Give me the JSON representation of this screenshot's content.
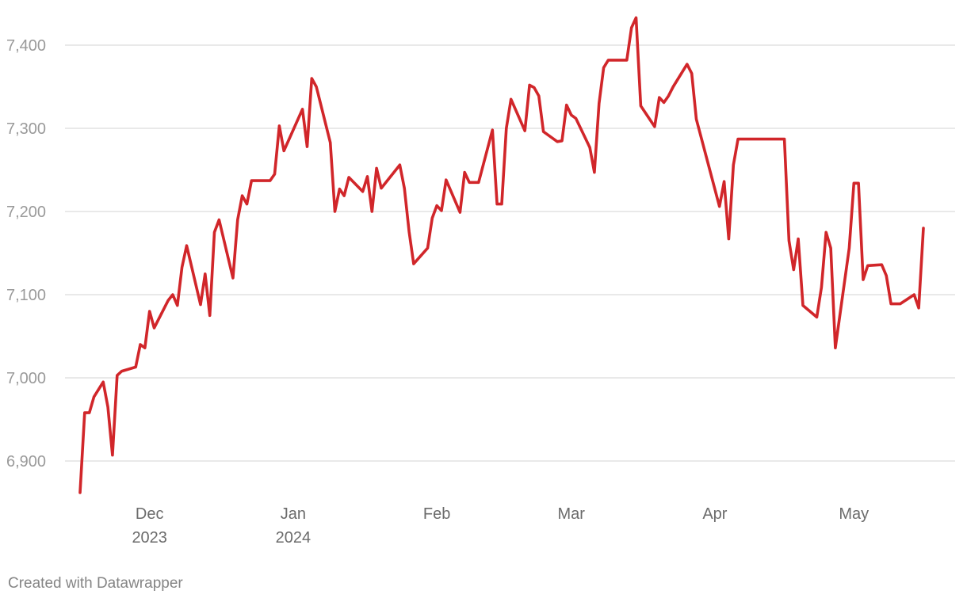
{
  "footer": {
    "credit": "Created with Datawrapper"
  },
  "colors": {
    "line": "#d1262a",
    "grid": "#dcdcdc",
    "ytick": "#9a9a9a",
    "xtick": "#6b6b6b"
  },
  "chart_data": {
    "type": "line",
    "title": "",
    "xlabel": "",
    "ylabel": "",
    "grid": true,
    "legend": "none",
    "ylim": [
      6850,
      7440
    ],
    "xlim": [
      "2023-11-14",
      "2024-05-21"
    ],
    "yticks": [
      6900,
      7000,
      7100,
      7200,
      7300,
      7400
    ],
    "ytick_labels": [
      "6,900",
      "7,000",
      "7,100",
      "7,200",
      "7,300",
      "7,400"
    ],
    "xticks": [
      {
        "date": "2023-12-01",
        "label": "Dec",
        "sublabel": "2023"
      },
      {
        "date": "2024-01-01",
        "label": "Jan",
        "sublabel": "2024"
      },
      {
        "date": "2024-02-01",
        "label": "Feb",
        "sublabel": ""
      },
      {
        "date": "2024-03-01",
        "label": "Mar",
        "sublabel": ""
      },
      {
        "date": "2024-04-01",
        "label": "Apr",
        "sublabel": ""
      },
      {
        "date": "2024-05-01",
        "label": "May",
        "sublabel": ""
      }
    ],
    "series": [
      {
        "points": [
          [
            "2023-11-16",
            6862
          ],
          [
            "2023-11-17",
            6958
          ],
          [
            "2023-11-18",
            6958
          ],
          [
            "2023-11-19",
            6977
          ],
          [
            "2023-11-21",
            6995
          ],
          [
            "2023-11-22",
            6965
          ],
          [
            "2023-11-23",
            6907
          ],
          [
            "2023-11-24",
            7003
          ],
          [
            "2023-11-25",
            7008
          ],
          [
            "2023-11-28",
            7013
          ],
          [
            "2023-11-29",
            7040
          ],
          [
            "2023-11-30",
            7036
          ],
          [
            "2023-12-01",
            7080
          ],
          [
            "2023-12-02",
            7060
          ],
          [
            "2023-12-05",
            7093
          ],
          [
            "2023-12-06",
            7100
          ],
          [
            "2023-12-07",
            7087
          ],
          [
            "2023-12-08",
            7133
          ],
          [
            "2023-12-09",
            7159
          ],
          [
            "2023-12-12",
            7088
          ],
          [
            "2023-12-13",
            7125
          ],
          [
            "2023-12-14",
            7075
          ],
          [
            "2023-12-15",
            7175
          ],
          [
            "2023-12-16",
            7190
          ],
          [
            "2023-12-19",
            7120
          ],
          [
            "2023-12-20",
            7190
          ],
          [
            "2023-12-21",
            7219
          ],
          [
            "2023-12-22",
            7209
          ],
          [
            "2023-12-23",
            7237
          ],
          [
            "2023-12-27",
            7237
          ],
          [
            "2023-12-28",
            7245
          ],
          [
            "2023-12-29",
            7303
          ],
          [
            "2023-12-30",
            7273
          ],
          [
            "2024-01-03",
            7323
          ],
          [
            "2024-01-04",
            7278
          ],
          [
            "2024-01-05",
            7360
          ],
          [
            "2024-01-06",
            7350
          ],
          [
            "2024-01-09",
            7283
          ],
          [
            "2024-01-10",
            7200
          ],
          [
            "2024-01-11",
            7227
          ],
          [
            "2024-01-12",
            7219
          ],
          [
            "2024-01-13",
            7241
          ],
          [
            "2024-01-16",
            7224
          ],
          [
            "2024-01-17",
            7242
          ],
          [
            "2024-01-18",
            7200
          ],
          [
            "2024-01-19",
            7252
          ],
          [
            "2024-01-20",
            7228
          ],
          [
            "2024-01-24",
            7256
          ],
          [
            "2024-01-25",
            7228
          ],
          [
            "2024-01-26",
            7176
          ],
          [
            "2024-01-27",
            7137
          ],
          [
            "2024-01-30",
            7156
          ],
          [
            "2024-01-31",
            7192
          ],
          [
            "2024-02-01",
            7207
          ],
          [
            "2024-02-02",
            7201
          ],
          [
            "2024-02-03",
            7238
          ],
          [
            "2024-02-06",
            7199
          ],
          [
            "2024-02-07",
            7247
          ],
          [
            "2024-02-08",
            7235
          ],
          [
            "2024-02-10",
            7235
          ],
          [
            "2024-02-13",
            7298
          ],
          [
            "2024-02-14",
            7209
          ],
          [
            "2024-02-15",
            7209
          ],
          [
            "2024-02-16",
            7300
          ],
          [
            "2024-02-17",
            7335
          ],
          [
            "2024-02-20",
            7297
          ],
          [
            "2024-02-21",
            7352
          ],
          [
            "2024-02-22",
            7349
          ],
          [
            "2024-02-23",
            7339
          ],
          [
            "2024-02-24",
            7296
          ],
          [
            "2024-02-27",
            7284
          ],
          [
            "2024-02-28",
            7285
          ],
          [
            "2024-02-29",
            7328
          ],
          [
            "2024-03-01",
            7316
          ],
          [
            "2024-03-02",
            7312
          ],
          [
            "2024-03-05",
            7277
          ],
          [
            "2024-03-06",
            7247
          ],
          [
            "2024-03-07",
            7330
          ],
          [
            "2024-03-08",
            7373
          ],
          [
            "2024-03-09",
            7382
          ],
          [
            "2024-03-13",
            7382
          ],
          [
            "2024-03-14",
            7421
          ],
          [
            "2024-03-15",
            7433
          ],
          [
            "2024-03-16",
            7327
          ],
          [
            "2024-03-19",
            7302
          ],
          [
            "2024-03-20",
            7337
          ],
          [
            "2024-03-21",
            7331
          ],
          [
            "2024-03-22",
            7339
          ],
          [
            "2024-03-23",
            7350
          ],
          [
            "2024-03-26",
            7377
          ],
          [
            "2024-03-27",
            7366
          ],
          [
            "2024-03-28",
            7311
          ],
          [
            "2024-04-02",
            7206
          ],
          [
            "2024-04-03",
            7236
          ],
          [
            "2024-04-04",
            7167
          ],
          [
            "2024-04-05",
            7256
          ],
          [
            "2024-04-06",
            7287
          ],
          [
            "2024-04-16",
            7287
          ],
          [
            "2024-04-17",
            7165
          ],
          [
            "2024-04-18",
            7130
          ],
          [
            "2024-04-19",
            7167
          ],
          [
            "2024-04-20",
            7087
          ],
          [
            "2024-04-23",
            7073
          ],
          [
            "2024-04-24",
            7109
          ],
          [
            "2024-04-25",
            7175
          ],
          [
            "2024-04-26",
            7156
          ],
          [
            "2024-04-27",
            7036
          ],
          [
            "2024-04-30",
            7156
          ],
          [
            "2024-05-01",
            7234
          ],
          [
            "2024-05-02",
            7234
          ],
          [
            "2024-05-03",
            7118
          ],
          [
            "2024-05-04",
            7135
          ],
          [
            "2024-05-07",
            7136
          ],
          [
            "2024-05-08",
            7123
          ],
          [
            "2024-05-09",
            7089
          ],
          [
            "2024-05-11",
            7089
          ],
          [
            "2024-05-14",
            7100
          ],
          [
            "2024-05-15",
            7084
          ],
          [
            "2024-05-16",
            7180
          ]
        ]
      }
    ]
  }
}
